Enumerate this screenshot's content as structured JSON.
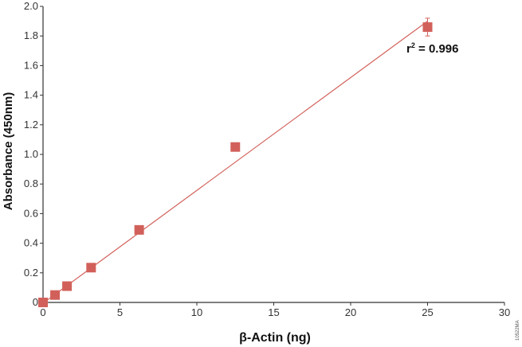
{
  "chart_data": {
    "type": "scatter",
    "xlabel": "β-Actin (ng)",
    "ylabel": "Absorbance (450nm)",
    "xlim": [
      0,
      30
    ],
    "ylim": [
      0,
      2.0
    ],
    "xticks": [
      "0",
      "5",
      "10",
      "15",
      "20",
      "25",
      "30"
    ],
    "yticks": [
      "0",
      "0.2",
      "0.4",
      "0.6",
      "0.8",
      "1.0",
      "1.2",
      "1.4",
      "1.6",
      "1.8",
      "2.0"
    ],
    "x": [
      0,
      0.78,
      1.56,
      3.125,
      6.25,
      12.5,
      25
    ],
    "y": [
      0,
      0.05,
      0.11,
      0.235,
      0.49,
      1.05,
      1.86
    ],
    "error": [
      0,
      0,
      0,
      0,
      0,
      0,
      0.06
    ],
    "fit": {
      "x": [
        0,
        25
      ],
      "y": [
        -0.005,
        1.9
      ]
    },
    "annotation": {
      "prefix": "r",
      "sup": "2",
      "text": " = 0.996"
    },
    "grid": false,
    "color": "#d2605a",
    "watermark": "10522MA"
  }
}
